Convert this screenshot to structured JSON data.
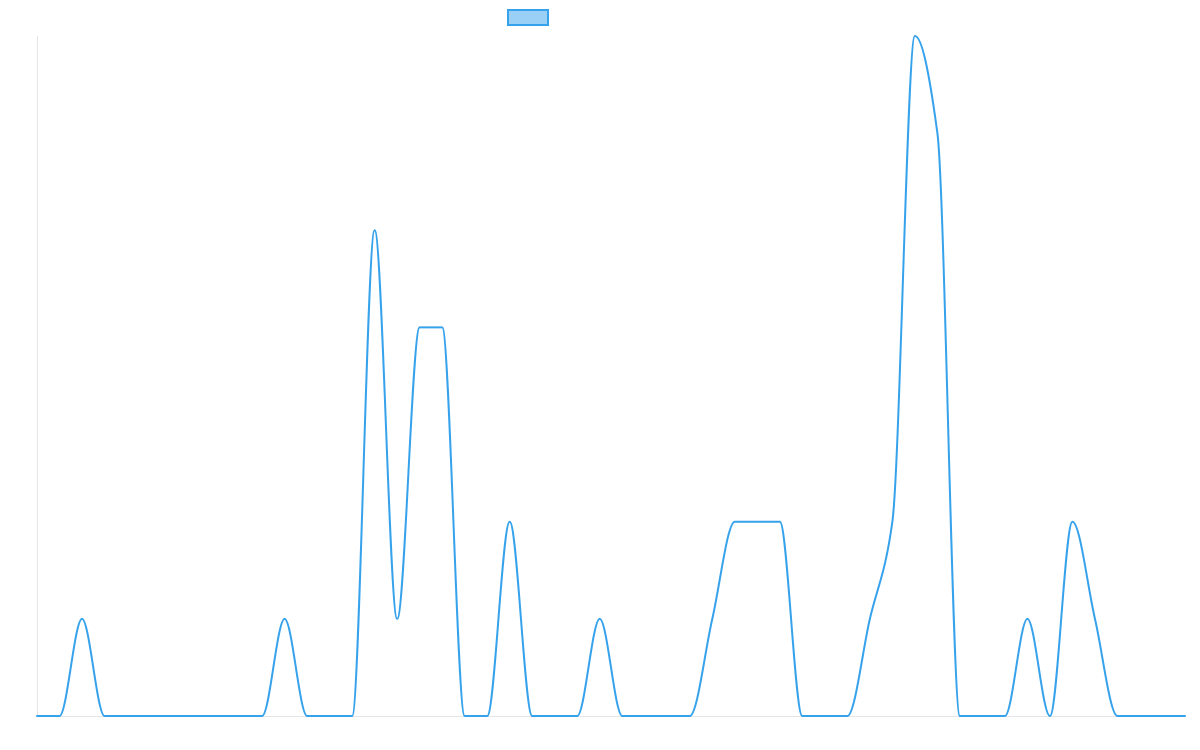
{
  "chart_data": {
    "type": "line",
    "title": "",
    "xlabel": "",
    "ylabel": "",
    "grid": false,
    "legend_position": "top",
    "x": [
      0,
      1,
      2,
      3,
      4,
      5,
      6,
      7,
      8,
      9,
      10,
      11,
      12,
      13,
      14,
      15,
      16,
      17,
      18,
      19,
      20,
      21,
      22,
      23,
      24,
      25,
      26,
      27,
      28,
      29,
      30,
      31,
      32,
      33,
      34,
      35,
      36,
      37,
      38,
      39,
      40,
      41,
      42,
      43,
      44,
      45,
      46,
      47,
      48,
      49,
      50,
      51
    ],
    "ylim": [
      0,
      7
    ],
    "series": [
      {
        "name": "",
        "color": "#36a2eb",
        "fill": "#9ad0f5",
        "values": [
          0,
          0,
          1,
          0,
          0,
          0,
          0,
          0,
          0,
          0,
          0,
          1,
          0,
          0,
          0,
          5,
          1,
          4,
          4,
          0,
          0,
          2,
          0,
          0,
          0,
          1,
          0,
          0,
          0,
          0,
          1,
          2,
          2,
          2,
          0,
          0,
          0,
          1,
          2,
          7,
          6,
          0,
          0,
          0,
          1,
          0,
          2,
          1,
          0,
          0,
          0,
          0
        ]
      }
    ]
  }
}
